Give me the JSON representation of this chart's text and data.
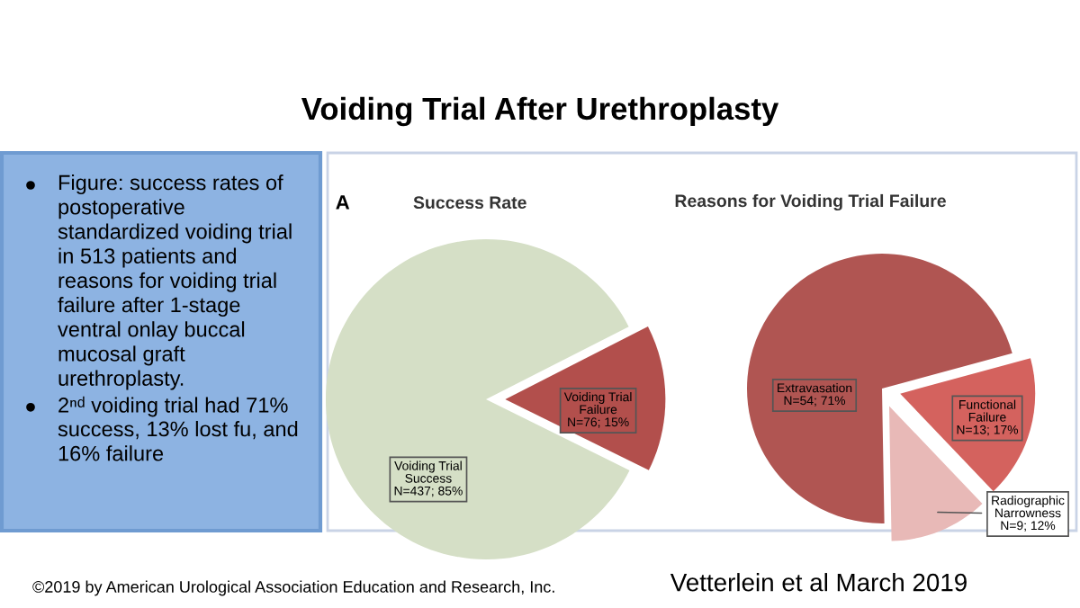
{
  "chart_data": [
    {
      "type": "other",
      "title": "Voiding Trial After Urethroplasty",
      "annotations": [
        "Figure: success rates of\npostoperative\nstandardized voiding trial\nin 513 patients and\nreasons for voiding trial\nfailure after 1-stage\nventral onlay buccal\nmucosal graft\nurethroplasty.",
        "2ⁿᵈ voiding trial had 71%\nsuccess, 13% lost fu, and\n16% failure",
        "©2019 by American Urological Association Education and Research, Inc.",
        "Vetterlein et al March 2019"
      ]
    },
    {
      "type": "pie",
      "title": "Success Rate",
      "annotations": [
        "A"
      ],
      "categories": [
        "Voiding Trial\nSuccess",
        "Voiding Trial\nFailure"
      ],
      "values": [
        437,
        76
      ],
      "value_labels": [
        "N=437; 85%",
        "N=76; 15%"
      ],
      "colors": [
        "#d5dfc6",
        "#b24f4c"
      ]
    },
    {
      "type": "pie",
      "title": "Reasons for Voiding Trial Failure",
      "categories": [
        "Extravasation",
        "Functional\nFailure",
        "Radiographic\nNarrowness"
      ],
      "values": [
        54,
        13,
        9
      ],
      "value_labels": [
        "N=54; 71%",
        "N=13; 17%",
        "N=9; 12%"
      ],
      "colors": [
        "#b05552",
        "#d4625e",
        "#e8b9b7"
      ]
    }
  ]
}
